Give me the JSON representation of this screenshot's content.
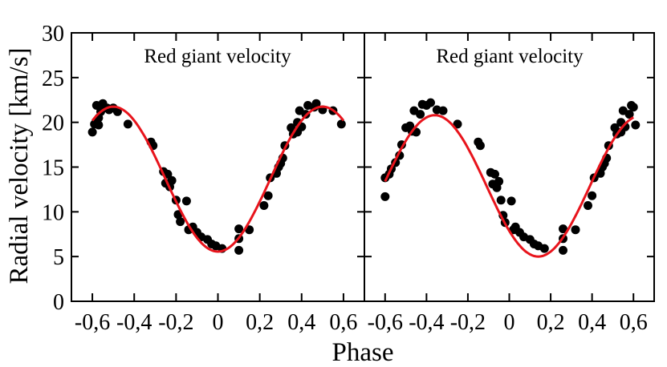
{
  "chart_data": {
    "type": "scatter",
    "ylabel": "Radial velocity [km/s]",
    "xlabel": "Phase",
    "ylim": [
      0,
      30
    ],
    "xlim": [
      -0.7,
      0.7
    ],
    "yticks": [
      0,
      5,
      10,
      15,
      20,
      25,
      30
    ],
    "ytick_labels": [
      "0",
      "5",
      "10",
      "15",
      "20",
      "25",
      "30"
    ],
    "xticks": [
      -0.6,
      -0.4,
      -0.2,
      0,
      0.2,
      0.4,
      0.6
    ],
    "xtick_labels": [
      "-0,6",
      "-0,4",
      "-0,2",
      "0",
      "0,2",
      "0,4",
      "0,6"
    ],
    "colors": {
      "points": "#000000",
      "fit": "#e8141c",
      "axes": "#000000"
    },
    "panels": [
      {
        "title": "Red giant velocity",
        "fit_curve": {
          "mean": 13.65,
          "amplitude": 8.1,
          "center_phase": 0.0,
          "phase_range": [
            -0.6,
            0.6
          ]
        },
        "points": [
          [
            -0.6,
            18.9
          ],
          [
            -0.59,
            19.8
          ],
          [
            -0.58,
            21.9
          ],
          [
            -0.57,
            20.5
          ],
          [
            -0.57,
            19.7
          ],
          [
            -0.56,
            21.2
          ],
          [
            -0.55,
            22.1
          ],
          [
            -0.53,
            21.6
          ],
          [
            -0.52,
            21.4
          ],
          [
            -0.5,
            21.6
          ],
          [
            -0.48,
            21.2
          ],
          [
            -0.43,
            19.8
          ],
          [
            -0.32,
            17.8
          ],
          [
            -0.31,
            17.4
          ],
          [
            -0.26,
            14.5
          ],
          [
            -0.25,
            13.2
          ],
          [
            -0.24,
            14.2
          ],
          [
            -0.23,
            12.8
          ],
          [
            -0.22,
            13.5
          ],
          [
            -0.2,
            11.3
          ],
          [
            -0.19,
            9.7
          ],
          [
            -0.18,
            8.9
          ],
          [
            -0.15,
            11.2
          ],
          [
            -0.14,
            8.0
          ],
          [
            -0.12,
            8.3
          ],
          [
            -0.1,
            7.7
          ],
          [
            -0.08,
            7.2
          ],
          [
            -0.05,
            6.9
          ],
          [
            -0.03,
            6.4
          ],
          [
            -0.01,
            6.2
          ],
          [
            0.02,
            5.9
          ],
          [
            0.1,
            5.7
          ],
          [
            0.1,
            7.0
          ],
          [
            0.1,
            8.1
          ],
          [
            0.15,
            8.0
          ],
          [
            0.22,
            10.7
          ],
          [
            0.24,
            11.8
          ],
          [
            0.25,
            13.8
          ],
          [
            0.28,
            14.3
          ],
          [
            0.29,
            15.0
          ],
          [
            0.3,
            15.4
          ],
          [
            0.31,
            16.0
          ],
          [
            0.32,
            17.4
          ],
          [
            0.35,
            19.4
          ],
          [
            0.36,
            18.7
          ],
          [
            0.38,
            18.9
          ],
          [
            0.38,
            20.0
          ],
          [
            0.39,
            21.3
          ],
          [
            0.4,
            19.5
          ],
          [
            0.42,
            20.9
          ],
          [
            0.43,
            21.9
          ],
          [
            0.46,
            21.7
          ],
          [
            0.47,
            22.1
          ],
          [
            0.5,
            21.4
          ],
          [
            0.55,
            21.3
          ],
          [
            0.59,
            19.8
          ]
        ]
      },
      {
        "title": "Red giant velocity",
        "fit_curve": {
          "mean": 12.9,
          "amplitude": 7.9,
          "center_phase": 0.14,
          "phase_range": [
            -0.6,
            0.6
          ]
        },
        "points": [
          [
            -0.6,
            11.7
          ],
          [
            -0.6,
            13.8
          ],
          [
            -0.58,
            14.2
          ],
          [
            -0.57,
            14.8
          ],
          [
            -0.55,
            15.5
          ],
          [
            -0.53,
            16.3
          ],
          [
            -0.52,
            17.5
          ],
          [
            -0.5,
            19.4
          ],
          [
            -0.48,
            19.6
          ],
          [
            -0.47,
            19.0
          ],
          [
            -0.46,
            21.3
          ],
          [
            -0.45,
            18.9
          ],
          [
            -0.43,
            20.9
          ],
          [
            -0.42,
            22.0
          ],
          [
            -0.4,
            21.9
          ],
          [
            -0.38,
            22.2
          ],
          [
            -0.35,
            21.4
          ],
          [
            -0.32,
            21.3
          ],
          [
            -0.25,
            19.8
          ],
          [
            -0.15,
            17.8
          ],
          [
            -0.14,
            17.4
          ],
          [
            -0.09,
            14.4
          ],
          [
            -0.08,
            13.1
          ],
          [
            -0.07,
            14.2
          ],
          [
            -0.06,
            12.7
          ],
          [
            -0.05,
            13.4
          ],
          [
            -0.04,
            11.3
          ],
          [
            -0.03,
            9.6
          ],
          [
            -0.02,
            8.8
          ],
          [
            0.01,
            11.2
          ],
          [
            0.02,
            8.0
          ],
          [
            0.03,
            8.3
          ],
          [
            0.05,
            7.7
          ],
          [
            0.07,
            7.2
          ],
          [
            0.1,
            6.9
          ],
          [
            0.12,
            6.4
          ],
          [
            0.14,
            6.2
          ],
          [
            0.17,
            5.9
          ],
          [
            0.26,
            5.7
          ],
          [
            0.26,
            7.0
          ],
          [
            0.26,
            8.1
          ],
          [
            0.32,
            8.0
          ],
          [
            0.38,
            10.7
          ],
          [
            0.4,
            11.8
          ],
          [
            0.41,
            13.8
          ],
          [
            0.44,
            14.3
          ],
          [
            0.45,
            15.0
          ],
          [
            0.46,
            15.4
          ],
          [
            0.47,
            16.0
          ],
          [
            0.48,
            17.4
          ],
          [
            0.51,
            19.4
          ],
          [
            0.52,
            18.7
          ],
          [
            0.54,
            18.9
          ],
          [
            0.54,
            20.0
          ],
          [
            0.55,
            21.3
          ],
          [
            0.56,
            19.5
          ],
          [
            0.58,
            20.9
          ],
          [
            0.59,
            21.9
          ],
          [
            0.6,
            21.7
          ],
          [
            0.61,
            19.7
          ]
        ]
      }
    ]
  }
}
